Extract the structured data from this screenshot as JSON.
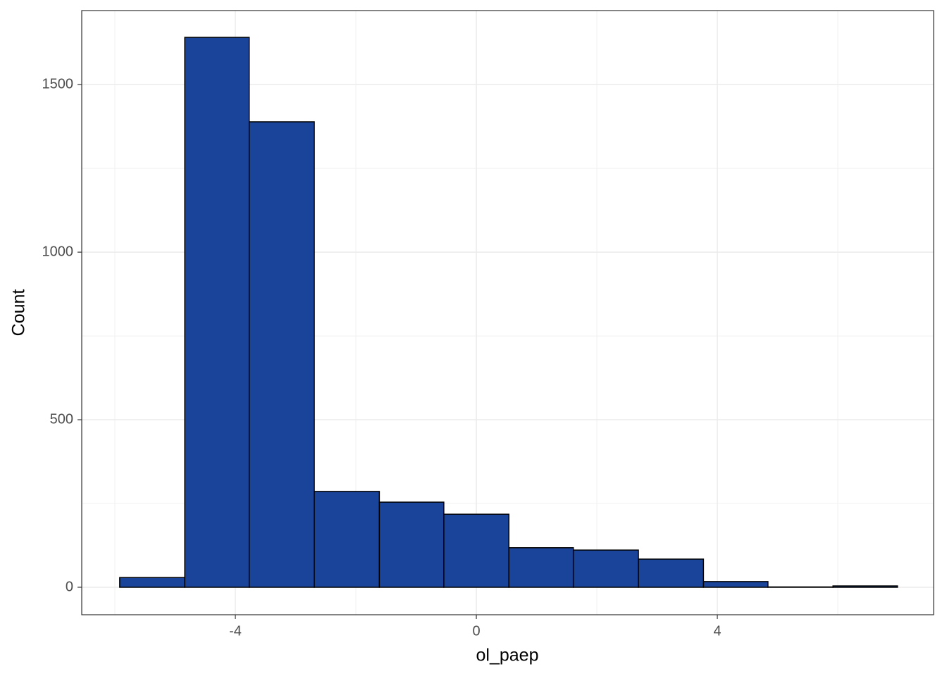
{
  "chart_data": {
    "type": "histogram",
    "x_label": "ol_paep",
    "y_label": "Count",
    "bins": [
      -5.92,
      -4.84,
      -3.77,
      -2.69,
      -1.61,
      -0.54,
      0.54,
      1.61,
      2.69,
      3.77,
      4.84,
      5.92,
      6.99
    ],
    "values": [
      29,
      1641,
      1389,
      286,
      254,
      218,
      118,
      111,
      84,
      17,
      1,
      4
    ],
    "color": "#1a4499",
    "xlim": [
      -6.55,
      7.59
    ],
    "xticks": [
      -4,
      0,
      4
    ],
    "ylim": [
      -82,
      1721
    ],
    "yticks": [
      0,
      500,
      1000,
      1500
    ],
    "grid": true
  }
}
